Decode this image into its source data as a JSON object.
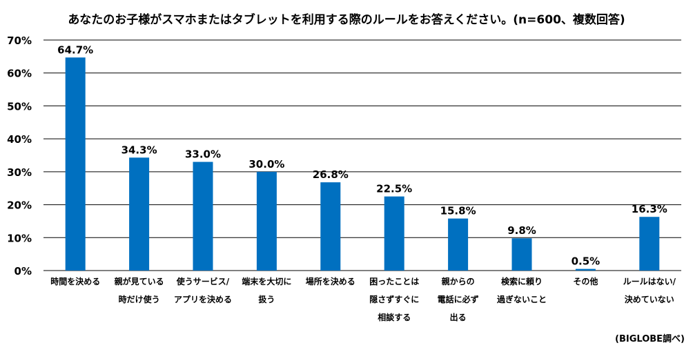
{
  "title": "あなたのお子様がスマホまたはタブレットを利用する際のルールをお答えください。(n=600、複数回答)",
  "source": "(BIGLOBE調べ)",
  "colors": {
    "bar": "#0070C0",
    "grid": "#000000"
  },
  "chart_data": {
    "type": "bar",
    "categories": [
      [
        "時間を決める"
      ],
      [
        "親が見ている",
        "時だけ使う"
      ],
      [
        "使うサービス/",
        "アプリを決める"
      ],
      [
        "端末を大切に",
        "扱う"
      ],
      [
        "場所を決める"
      ],
      [
        "困ったことは",
        "隠さずすぐに",
        "相談する"
      ],
      [
        "親からの",
        "電話に必ず",
        "出る"
      ],
      [
        "検索に頼り",
        "過ぎないこと"
      ],
      [
        "その他"
      ],
      [
        "ルールはない/",
        "決めていない"
      ]
    ],
    "values": [
      64.7,
      34.3,
      33.0,
      30.0,
      26.8,
      22.5,
      15.8,
      9.8,
      0.5,
      16.3
    ],
    "value_labels": [
      "64.7%",
      "34.3%",
      "33.0%",
      "30.0%",
      "26.8%",
      "22.5%",
      "15.8%",
      "9.8%",
      "0.5%",
      "16.3%"
    ],
    "yticks": [
      0,
      10,
      20,
      30,
      40,
      50,
      60,
      70
    ],
    "ytick_labels": [
      "0%",
      "10%",
      "20%",
      "30%",
      "40%",
      "50%",
      "60%",
      "70%"
    ],
    "ylim": [
      0,
      70
    ],
    "grid": true,
    "xlabel": "",
    "ylabel": ""
  }
}
